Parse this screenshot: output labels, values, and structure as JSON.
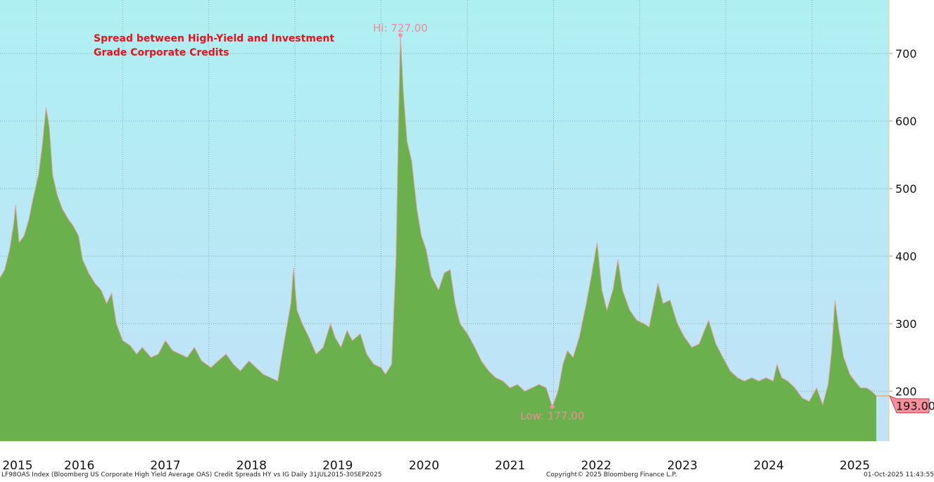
{
  "chart_data": {
    "type": "area",
    "title": "Spread between High-Yield and Investment Grade Corporate Credits",
    "title_lines": [
      "Spread between High-Yield and Investment",
      "Grade Corporate Credits"
    ],
    "xlabel": "",
    "ylabel": "",
    "ylim": [
      126,
      779
    ],
    "y_ticks": [
      200,
      300,
      400,
      500,
      600,
      700
    ],
    "x_tick_labels": [
      "2015",
      "2016",
      "2017",
      "2018",
      "2019",
      "2020",
      "2021",
      "2022",
      "2023",
      "2024",
      "2025"
    ],
    "grid": true,
    "y_axis_side": "right",
    "colors": {
      "fill": "#6ab04c",
      "line": "#e8a0a4",
      "bg_top": "#aef0f2",
      "bg_bottom": "#c2e2f8",
      "title": "#e8141c",
      "marker": "#f5909c"
    },
    "annotations": {
      "high_label": "Hi: 727.00",
      "high_date": "2020-03-23",
      "high_value": 727,
      "low_label": "Low: 177.00",
      "low_date": "2021-12-27",
      "low_value": 177,
      "last_label": "193.00",
      "last_value": 193
    },
    "series": [
      {
        "points": [
          [
            "2015-07-31",
            368
          ],
          [
            "2015-08-20",
            380
          ],
          [
            "2015-09-10",
            410
          ],
          [
            "2015-09-28",
            450
          ],
          [
            "2015-10-05",
            476
          ],
          [
            "2015-10-20",
            420
          ],
          [
            "2015-11-10",
            430
          ],
          [
            "2015-12-01",
            455
          ],
          [
            "2015-12-15",
            480
          ],
          [
            "2016-01-10",
            520
          ],
          [
            "2016-01-25",
            560
          ],
          [
            "2016-02-11",
            620
          ],
          [
            "2016-02-25",
            590
          ],
          [
            "2016-03-10",
            520
          ],
          [
            "2016-03-30",
            490
          ],
          [
            "2016-04-20",
            470
          ],
          [
            "2016-05-15",
            455
          ],
          [
            "2016-06-05",
            445
          ],
          [
            "2016-06-28",
            430
          ],
          [
            "2016-07-15",
            395
          ],
          [
            "2016-08-10",
            375
          ],
          [
            "2016-09-05",
            360
          ],
          [
            "2016-10-01",
            350
          ],
          [
            "2016-10-25",
            330
          ],
          [
            "2016-11-15",
            345
          ],
          [
            "2016-12-05",
            300
          ],
          [
            "2017-01-01",
            275
          ],
          [
            "2017-02-01",
            268
          ],
          [
            "2017-03-01",
            255
          ],
          [
            "2017-03-25",
            265
          ],
          [
            "2017-05-01",
            250
          ],
          [
            "2017-06-01",
            255
          ],
          [
            "2017-07-01",
            275
          ],
          [
            "2017-08-01",
            260
          ],
          [
            "2017-09-01",
            255
          ],
          [
            "2017-10-01",
            250
          ],
          [
            "2017-11-01",
            265
          ],
          [
            "2017-12-01",
            245
          ],
          [
            "2018-01-10",
            235
          ],
          [
            "2018-02-10",
            245
          ],
          [
            "2018-03-15",
            255
          ],
          [
            "2018-04-15",
            240
          ],
          [
            "2018-05-15",
            230
          ],
          [
            "2018-06-20",
            245
          ],
          [
            "2018-07-20",
            235
          ],
          [
            "2018-08-20",
            225
          ],
          [
            "2018-09-20",
            220
          ],
          [
            "2018-10-20",
            215
          ],
          [
            "2018-11-10",
            260
          ],
          [
            "2018-11-30",
            300
          ],
          [
            "2018-12-15",
            330
          ],
          [
            "2018-12-26",
            383
          ],
          [
            "2019-01-10",
            320
          ],
          [
            "2019-02-01",
            300
          ],
          [
            "2019-03-01",
            280
          ],
          [
            "2019-04-01",
            255
          ],
          [
            "2019-05-01",
            265
          ],
          [
            "2019-06-01",
            300
          ],
          [
            "2019-06-20",
            280
          ],
          [
            "2019-07-15",
            265
          ],
          [
            "2019-08-10",
            290
          ],
          [
            "2019-09-01",
            275
          ],
          [
            "2019-10-05",
            285
          ],
          [
            "2019-11-01",
            255
          ],
          [
            "2019-12-01",
            240
          ],
          [
            "2020-01-01",
            235
          ],
          [
            "2020-01-20",
            225
          ],
          [
            "2020-02-15",
            240
          ],
          [
            "2020-03-05",
            400
          ],
          [
            "2020-03-15",
            600
          ],
          [
            "2020-03-23",
            727
          ],
          [
            "2020-04-05",
            640
          ],
          [
            "2020-04-20",
            570
          ],
          [
            "2020-05-10",
            540
          ],
          [
            "2020-06-01",
            470
          ],
          [
            "2020-06-20",
            430
          ],
          [
            "2020-07-10",
            410
          ],
          [
            "2020-08-01",
            370
          ],
          [
            "2020-09-01",
            350
          ],
          [
            "2020-09-25",
            375
          ],
          [
            "2020-10-20",
            380
          ],
          [
            "2020-11-10",
            330
          ],
          [
            "2020-12-01",
            300
          ],
          [
            "2021-01-01",
            285
          ],
          [
            "2021-02-01",
            265
          ],
          [
            "2021-03-01",
            245
          ],
          [
            "2021-04-01",
            230
          ],
          [
            "2021-05-01",
            220
          ],
          [
            "2021-06-01",
            215
          ],
          [
            "2021-07-01",
            205
          ],
          [
            "2021-08-01",
            210
          ],
          [
            "2021-09-01",
            200
          ],
          [
            "2021-10-01",
            205
          ],
          [
            "2021-11-01",
            210
          ],
          [
            "2021-12-01",
            205
          ],
          [
            "2021-12-27",
            177
          ],
          [
            "2022-01-20",
            200
          ],
          [
            "2022-02-10",
            240
          ],
          [
            "2022-03-01",
            260
          ],
          [
            "2022-03-25",
            250
          ],
          [
            "2022-04-20",
            280
          ],
          [
            "2022-05-20",
            330
          ],
          [
            "2022-06-10",
            370
          ],
          [
            "2022-07-05",
            420
          ],
          [
            "2022-07-25",
            350
          ],
          [
            "2022-08-15",
            320
          ],
          [
            "2022-09-10",
            350
          ],
          [
            "2022-10-01",
            395
          ],
          [
            "2022-10-20",
            350
          ],
          [
            "2022-11-20",
            320
          ],
          [
            "2022-12-20",
            305
          ],
          [
            "2023-01-20",
            300
          ],
          [
            "2023-02-10",
            295
          ],
          [
            "2023-03-20",
            360
          ],
          [
            "2023-04-10",
            330
          ],
          [
            "2023-05-10",
            335
          ],
          [
            "2023-06-10",
            300
          ],
          [
            "2023-07-10",
            280
          ],
          [
            "2023-08-10",
            265
          ],
          [
            "2023-09-10",
            270
          ],
          [
            "2023-10-20",
            305
          ],
          [
            "2023-11-20",
            270
          ],
          [
            "2023-12-20",
            250
          ],
          [
            "2024-01-20",
            230
          ],
          [
            "2024-02-20",
            220
          ],
          [
            "2024-03-20",
            215
          ],
          [
            "2024-04-20",
            220
          ],
          [
            "2024-05-20",
            215
          ],
          [
            "2024-06-20",
            220
          ],
          [
            "2024-07-20",
            215
          ],
          [
            "2024-08-05",
            240
          ],
          [
            "2024-08-25",
            220
          ],
          [
            "2024-09-20",
            215
          ],
          [
            "2024-10-20",
            205
          ],
          [
            "2024-11-20",
            190
          ],
          [
            "2024-12-20",
            185
          ],
          [
            "2025-01-20",
            205
          ],
          [
            "2025-02-15",
            180
          ],
          [
            "2025-03-10",
            210
          ],
          [
            "2025-03-25",
            260
          ],
          [
            "2025-04-08",
            335
          ],
          [
            "2025-04-25",
            290
          ],
          [
            "2025-05-15",
            250
          ],
          [
            "2025-06-10",
            225
          ],
          [
            "2025-07-01",
            215
          ],
          [
            "2025-07-25",
            205
          ],
          [
            "2025-08-20",
            205
          ],
          [
            "2025-09-10",
            200
          ],
          [
            "2025-09-30",
            193
          ]
        ]
      }
    ]
  },
  "footer": {
    "source": "LF98OAS Index (Bloomberg US Corporate High Yield Average OAS) Credit Spreads HY vs IG Daily 31JUL2015-30SEP2025",
    "copyright": "Copyright© 2025 Bloomberg Finance L.P.",
    "timestamp": "01-Oct-2025 11:43:55"
  }
}
